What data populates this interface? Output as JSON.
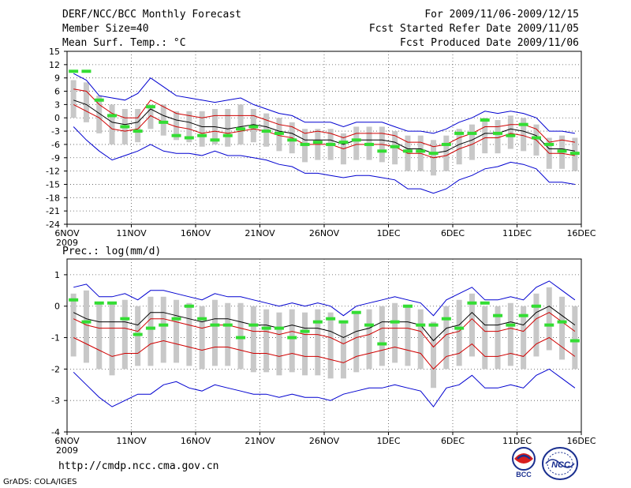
{
  "header": {
    "title": "DERF/NCC/BCC Monthly Forecast",
    "member_size": "Member Size=40",
    "variable": "Mean Surf. Temp.: °C",
    "for_range": "For 2009/11/06-2009/12/15",
    "fcst_started": "Fcst Started Refer Date 2009/11/05",
    "fcst_produced": "Fcst Produced Date 2009/11/06"
  },
  "footer": {
    "url": "http://cmdp.ncc.cma.gov.cn",
    "credit": "GrADS: COLA/IGES"
  },
  "logos": {
    "bcc_label": "BCC",
    "ncc_label": "NCC"
  },
  "chart_data": [
    {
      "type": "line",
      "title": "Mean Surf. Temp.: °C",
      "x_tick_labels": [
        "6NOV",
        "11NOV",
        "16NOV",
        "21NOV",
        "26NOV",
        "1DEC",
        "6DEC",
        "11DEC",
        "16DEC"
      ],
      "x_year_label": "2009",
      "n_days": 40,
      "ylim": [
        -24,
        15
      ],
      "y_ticks": [
        15,
        12,
        9,
        6,
        3,
        0,
        -3,
        -6,
        -9,
        -12,
        -15,
        -18,
        -21,
        -24
      ],
      "series": [
        {
          "name": "ensemble-mean",
          "color": "#000000",
          "values": [
            4.0,
            3.0,
            1.0,
            -1.0,
            -1.5,
            -1.0,
            2.0,
            0.5,
            -0.5,
            -1.0,
            -2.0,
            -2.0,
            -2.5,
            -2.0,
            -1.5,
            -2.0,
            -3.0,
            -3.5,
            -5.0,
            -5.0,
            -5.0,
            -6.0,
            -5.0,
            -5.0,
            -5.0,
            -5.5,
            -7.0,
            -7.0,
            -8.0,
            -7.5,
            -6.0,
            -5.0,
            -3.5,
            -3.5,
            -2.5,
            -3.0,
            -4.0,
            -7.0,
            -7.0,
            -7.5
          ]
        },
        {
          "name": "upper-red",
          "color": "#d00000",
          "values": [
            6.5,
            6.0,
            3.0,
            1.0,
            0.0,
            0.0,
            4.0,
            2.5,
            1.0,
            0.5,
            0.0,
            0.5,
            0.5,
            0.5,
            0.5,
            -0.5,
            -1.5,
            -2.0,
            -3.5,
            -3.0,
            -3.5,
            -4.5,
            -3.5,
            -3.5,
            -3.5,
            -4.0,
            -5.5,
            -5.5,
            -6.5,
            -6.0,
            -4.5,
            -3.5,
            -2.0,
            -2.0,
            -1.5,
            -1.5,
            -2.5,
            -5.5,
            -5.0,
            -5.5
          ]
        },
        {
          "name": "lower-red",
          "color": "#d00000",
          "values": [
            3.0,
            1.5,
            0.0,
            -2.5,
            -3.0,
            -2.5,
            0.5,
            -1.0,
            -2.0,
            -2.5,
            -3.5,
            -3.0,
            -3.5,
            -3.0,
            -2.5,
            -3.0,
            -4.0,
            -4.5,
            -6.0,
            -6.0,
            -6.0,
            -7.0,
            -6.0,
            -6.0,
            -6.0,
            -6.5,
            -8.0,
            -8.0,
            -9.0,
            -8.5,
            -7.0,
            -6.0,
            -4.5,
            -4.5,
            -3.5,
            -4.0,
            -5.0,
            -8.0,
            -8.0,
            -8.5
          ]
        },
        {
          "name": "upper-blue",
          "color": "#0000d0",
          "values": [
            10.0,
            8.5,
            5.0,
            4.5,
            4.0,
            5.5,
            9.0,
            7.0,
            5.0,
            4.5,
            4.0,
            3.5,
            4.0,
            4.5,
            3.0,
            2.0,
            1.0,
            0.5,
            -1.0,
            -1.0,
            -1.0,
            -2.0,
            -1.0,
            -1.0,
            -1.0,
            -2.0,
            -3.0,
            -3.0,
            -3.5,
            -2.5,
            -1.0,
            0.0,
            1.5,
            1.0,
            1.5,
            1.0,
            0.0,
            -3.0,
            -3.0,
            -3.5
          ]
        },
        {
          "name": "lower-blue",
          "color": "#0000d0",
          "values": [
            -2.0,
            -5.0,
            -7.5,
            -9.5,
            -8.5,
            -7.5,
            -6.0,
            -7.5,
            -8.0,
            -8.0,
            -8.5,
            -7.5,
            -8.5,
            -8.5,
            -9.0,
            -9.5,
            -10.5,
            -11.0,
            -12.5,
            -12.5,
            -13.0,
            -13.5,
            -13.0,
            -13.0,
            -13.5,
            -14.0,
            -16.0,
            -16.0,
            -17.0,
            -16.0,
            -14.0,
            -13.0,
            -11.5,
            -11.0,
            -10.0,
            -10.5,
            -11.5,
            -14.5,
            -14.5,
            -15.0
          ]
        }
      ],
      "box_upper": [
        8.5,
        8.0,
        5.0,
        3.0,
        2.0,
        2.0,
        3.0,
        3.0,
        1.5,
        1.5,
        1.5,
        2.0,
        2.0,
        3.0,
        2.0,
        1.0,
        0.0,
        -1.0,
        -2.5,
        -2.5,
        -2.5,
        -3.5,
        -2.0,
        -2.0,
        -2.0,
        -3.0,
        -4.0,
        -4.0,
        -5.0,
        -4.0,
        -2.5,
        -1.5,
        0.0,
        -0.5,
        0.5,
        0.0,
        -1.5,
        -4.5,
        -4.0,
        -4.5
      ],
      "box_lower": [
        0.0,
        -1.0,
        -3.5,
        -6.0,
        -6.0,
        -5.5,
        -2.5,
        -4.0,
        -5.0,
        -5.5,
        -6.5,
        -6.0,
        -6.5,
        -6.0,
        -5.5,
        -6.5,
        -7.5,
        -8.0,
        -10.0,
        -9.5,
        -9.5,
        -10.5,
        -9.5,
        -9.5,
        -10.0,
        -10.5,
        -12.0,
        -12.0,
        -13.0,
        -12.0,
        -10.5,
        -9.5,
        -8.0,
        -8.0,
        -7.0,
        -7.5,
        -8.5,
        -11.5,
        -11.5,
        -12.0
      ],
      "green_markers": [
        10.5,
        10.5,
        4.0,
        0.5,
        -2.0,
        -3.0,
        2.5,
        -1.0,
        -4.0,
        -4.5,
        -4.0,
        -5.0,
        -4.0,
        -2.5,
        -2.0,
        -3.0,
        -3.5,
        -5.0,
        -6.0,
        -5.5,
        -6.0,
        -5.5,
        -5.0,
        -6.0,
        -7.5,
        -6.5,
        -7.5,
        -7.5,
        -8.0,
        -6.0,
        -3.5,
        -3.5,
        -0.5,
        -3.5,
        -4.0,
        -1.5,
        -4.5,
        -6.0,
        -7.5,
        -8.0
      ]
    },
    {
      "type": "line",
      "title": "Prec.: log(mm/d)",
      "x_tick_labels": [
        "6NOV",
        "11NOV",
        "16NOV",
        "21NOV",
        "26NOV",
        "1DEC",
        "6DEC",
        "11DEC",
        "16DEC"
      ],
      "x_year_label": "2009",
      "n_days": 40,
      "ylim": [
        -4,
        1.5
      ],
      "y_ticks": [
        1,
        0,
        -1,
        -2,
        -3,
        -4
      ],
      "series": [
        {
          "name": "ensemble-mean",
          "color": "#000000",
          "values": [
            -0.2,
            -0.4,
            -0.5,
            -0.5,
            -0.5,
            -0.6,
            -0.2,
            -0.2,
            -0.3,
            -0.4,
            -0.5,
            -0.4,
            -0.4,
            -0.5,
            -0.6,
            -0.6,
            -0.7,
            -0.6,
            -0.7,
            -0.7,
            -0.8,
            -1.0,
            -0.8,
            -0.7,
            -0.5,
            -0.5,
            -0.5,
            -0.6,
            -1.1,
            -0.7,
            -0.6,
            -0.2,
            -0.6,
            -0.6,
            -0.5,
            -0.6,
            -0.2,
            0.0,
            -0.3,
            -0.6
          ]
        },
        {
          "name": "upper-red",
          "color": "#d00000",
          "values": [
            -0.4,
            -0.6,
            -0.7,
            -0.7,
            -0.7,
            -0.8,
            -0.4,
            -0.4,
            -0.5,
            -0.6,
            -0.7,
            -0.6,
            -0.6,
            -0.7,
            -0.8,
            -0.8,
            -0.9,
            -0.8,
            -0.9,
            -0.9,
            -1.0,
            -1.2,
            -1.0,
            -0.9,
            -0.7,
            -0.7,
            -0.7,
            -0.8,
            -1.3,
            -0.9,
            -0.8,
            -0.4,
            -0.8,
            -0.8,
            -0.7,
            -0.8,
            -0.4,
            -0.2,
            -0.5,
            -0.8
          ]
        },
        {
          "name": "lower-red",
          "color": "#d00000",
          "values": [
            -1.0,
            -1.2,
            -1.4,
            -1.6,
            -1.5,
            -1.5,
            -1.2,
            -1.1,
            -1.2,
            -1.3,
            -1.4,
            -1.3,
            -1.3,
            -1.4,
            -1.5,
            -1.5,
            -1.6,
            -1.5,
            -1.6,
            -1.6,
            -1.7,
            -1.8,
            -1.6,
            -1.5,
            -1.4,
            -1.3,
            -1.4,
            -1.5,
            -2.0,
            -1.6,
            -1.5,
            -1.2,
            -1.6,
            -1.6,
            -1.5,
            -1.6,
            -1.2,
            -1.0,
            -1.3,
            -1.6
          ]
        },
        {
          "name": "upper-blue",
          "color": "#0000d0",
          "values": [
            0.6,
            0.7,
            0.3,
            0.3,
            0.4,
            0.2,
            0.5,
            0.5,
            0.4,
            0.3,
            0.2,
            0.4,
            0.3,
            0.3,
            0.2,
            0.1,
            0.0,
            0.1,
            0.0,
            0.1,
            0.0,
            -0.3,
            0.0,
            0.1,
            0.2,
            0.3,
            0.2,
            0.1,
            -0.3,
            0.2,
            0.4,
            0.6,
            0.2,
            0.2,
            0.3,
            0.2,
            0.6,
            0.8,
            0.5,
            0.2
          ]
        },
        {
          "name": "lower-blue",
          "color": "#0000d0",
          "values": [
            -2.1,
            -2.5,
            -2.9,
            -3.2,
            -3.0,
            -2.8,
            -2.8,
            -2.5,
            -2.4,
            -2.6,
            -2.7,
            -2.5,
            -2.6,
            -2.7,
            -2.8,
            -2.8,
            -2.9,
            -2.8,
            -2.9,
            -2.9,
            -3.0,
            -2.8,
            -2.7,
            -2.6,
            -2.6,
            -2.5,
            -2.6,
            -2.7,
            -3.2,
            -2.6,
            -2.5,
            -2.2,
            -2.6,
            -2.6,
            -2.5,
            -2.6,
            -2.2,
            -2.0,
            -2.3,
            -2.6
          ]
        }
      ],
      "box_upper": [
        0.4,
        0.5,
        0.1,
        0.1,
        0.2,
        0.0,
        0.3,
        0.3,
        0.2,
        0.1,
        0.0,
        0.2,
        0.1,
        0.1,
        0.0,
        -0.1,
        -0.2,
        -0.1,
        -0.2,
        -0.1,
        -0.2,
        -0.5,
        -0.2,
        -0.1,
        0.0,
        0.1,
        0.0,
        -0.1,
        -0.5,
        0.0,
        0.2,
        0.4,
        0.0,
        0.0,
        0.1,
        0.0,
        0.4,
        0.6,
        0.3,
        0.0
      ],
      "box_lower": [
        -1.6,
        -1.8,
        -2.0,
        -2.2,
        -2.0,
        -1.9,
        -1.9,
        -1.8,
        -1.8,
        -1.9,
        -2.0,
        -1.9,
        -1.9,
        -2.0,
        -2.1,
        -2.1,
        -2.2,
        -2.1,
        -2.2,
        -2.2,
        -2.3,
        -2.3,
        -2.1,
        -2.0,
        -1.9,
        -1.8,
        -1.9,
        -2.0,
        -2.6,
        -2.0,
        -1.9,
        -1.6,
        -2.0,
        -2.0,
        -1.9,
        -2.0,
        -1.6,
        -1.4,
        -1.7,
        -2.0
      ],
      "green_markers": [
        0.2,
        -0.5,
        0.1,
        0.1,
        -0.4,
        -0.9,
        -0.7,
        -0.6,
        -0.4,
        0.0,
        -0.4,
        -0.6,
        -0.6,
        -1.0,
        -0.6,
        -0.7,
        -0.7,
        -1.0,
        -0.8,
        -0.5,
        -0.4,
        -0.5,
        -0.2,
        -0.6,
        -1.2,
        -0.5,
        0.0,
        -0.6,
        -0.6,
        -0.4,
        -0.7,
        0.1,
        0.1,
        -0.3,
        -0.6,
        -0.3,
        0.0,
        -0.6,
        -0.5,
        -1.1
      ]
    }
  ]
}
